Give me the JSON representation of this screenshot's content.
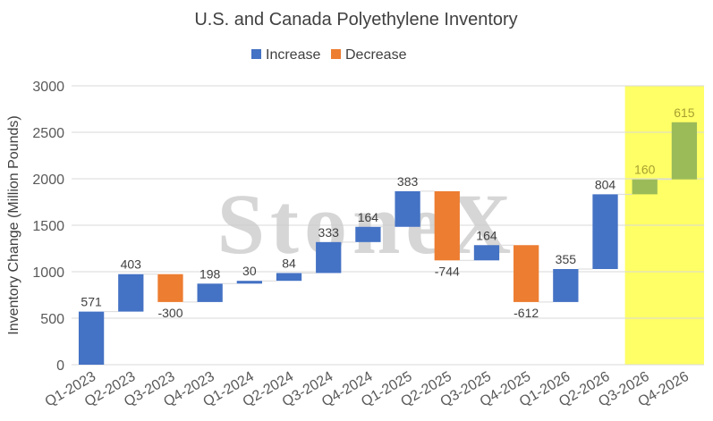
{
  "chart_data": {
    "type": "waterfall",
    "title": "U.S. and Canada Polyethylene Inventory",
    "ylabel": "Inventory Change (Million Pounds)",
    "xlabel": "",
    "ylim": [
      0,
      3000
    ],
    "yticks": [
      0,
      500,
      1000,
      1500,
      2000,
      2500,
      3000
    ],
    "grid": true,
    "legend_position": "top",
    "legend": [
      {
        "name": "Increase",
        "color": "#4472C4"
      },
      {
        "name": "Decrease",
        "color": "#ED7D31"
      }
    ],
    "categories": [
      "Q1-2023",
      "Q2-2023",
      "Q3-2023",
      "Q4-2023",
      "Q1-2024",
      "Q2-2024",
      "Q3-2024",
      "Q4-2024",
      "Q1-2025",
      "Q2-2025",
      "Q3-2025",
      "Q4-2025",
      "Q1-2026",
      "Q2-2026",
      "Q3-2026",
      "Q4-2026"
    ],
    "values": [
      571,
      403,
      -300,
      198,
      30,
      84,
      333,
      164,
      383,
      -744,
      164,
      -612,
      355,
      804,
      160,
      615
    ],
    "data_labels": [
      "571",
      "403",
      "-300",
      "198",
      "30",
      "84",
      "333",
      "164",
      "383",
      "-744",
      "164",
      "-612",
      "355",
      "804",
      "160",
      "615"
    ],
    "highlight": {
      "categories": [
        "Q3-2026",
        "Q4-2026"
      ],
      "band_color": "#FFFF66",
      "bar_color": "#9BBB59",
      "label_color": "#A8A030"
    },
    "colors": {
      "increase": "#4472C4",
      "decrease": "#ED7D31",
      "grid": "#D9D9D9",
      "axis_text": "#595959",
      "title": "#404040"
    },
    "watermark": "StoneX"
  }
}
